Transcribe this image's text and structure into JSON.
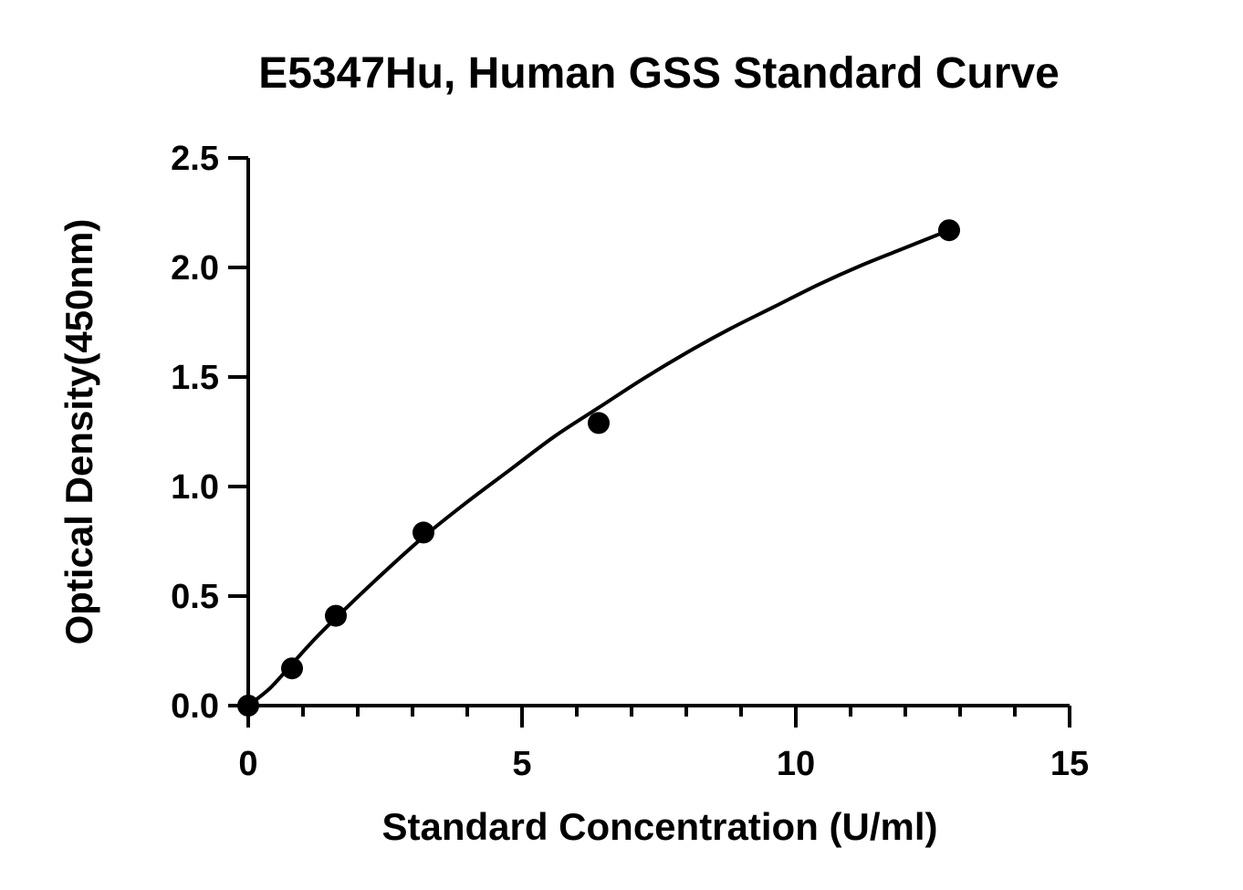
{
  "chart_data": {
    "type": "scatter",
    "title": "E5347Hu, Human GSS Standard Curve",
    "xlabel": "Standard Concentration (U/ml)",
    "ylabel": "Optical Density(450nm)",
    "xlim": [
      0,
      15
    ],
    "ylim": [
      0,
      2.5
    ],
    "x_ticks": [
      0,
      5,
      10,
      15
    ],
    "x_tick_labels": [
      "0",
      "5",
      "10",
      "15"
    ],
    "x_minor_step": 1,
    "y_ticks": [
      0,
      0.5,
      1.0,
      1.5,
      2.0,
      2.5
    ],
    "y_tick_labels": [
      "0.0",
      "0.5",
      "1.0",
      "1.5",
      "2.0",
      "2.5"
    ],
    "grid": false,
    "series": [
      {
        "x": [
          0,
          0.8,
          1.6,
          3.2,
          6.4,
          12.8
        ],
        "y": [
          0.0,
          0.17,
          0.41,
          0.79,
          1.29,
          2.17
        ]
      }
    ],
    "fit_curve": {
      "x": [
        0,
        0.4,
        0.8,
        1.2,
        1.6,
        2.4,
        3.2,
        4.0,
        4.8,
        5.6,
        6.4,
        7.2,
        8.0,
        8.8,
        9.6,
        10.4,
        11.2,
        12.0,
        12.8
      ],
      "y": [
        0.0,
        0.08,
        0.19,
        0.3,
        0.4,
        0.59,
        0.77,
        0.93,
        1.08,
        1.23,
        1.36,
        1.49,
        1.61,
        1.72,
        1.82,
        1.92,
        2.01,
        2.09,
        2.17
      ]
    }
  }
}
